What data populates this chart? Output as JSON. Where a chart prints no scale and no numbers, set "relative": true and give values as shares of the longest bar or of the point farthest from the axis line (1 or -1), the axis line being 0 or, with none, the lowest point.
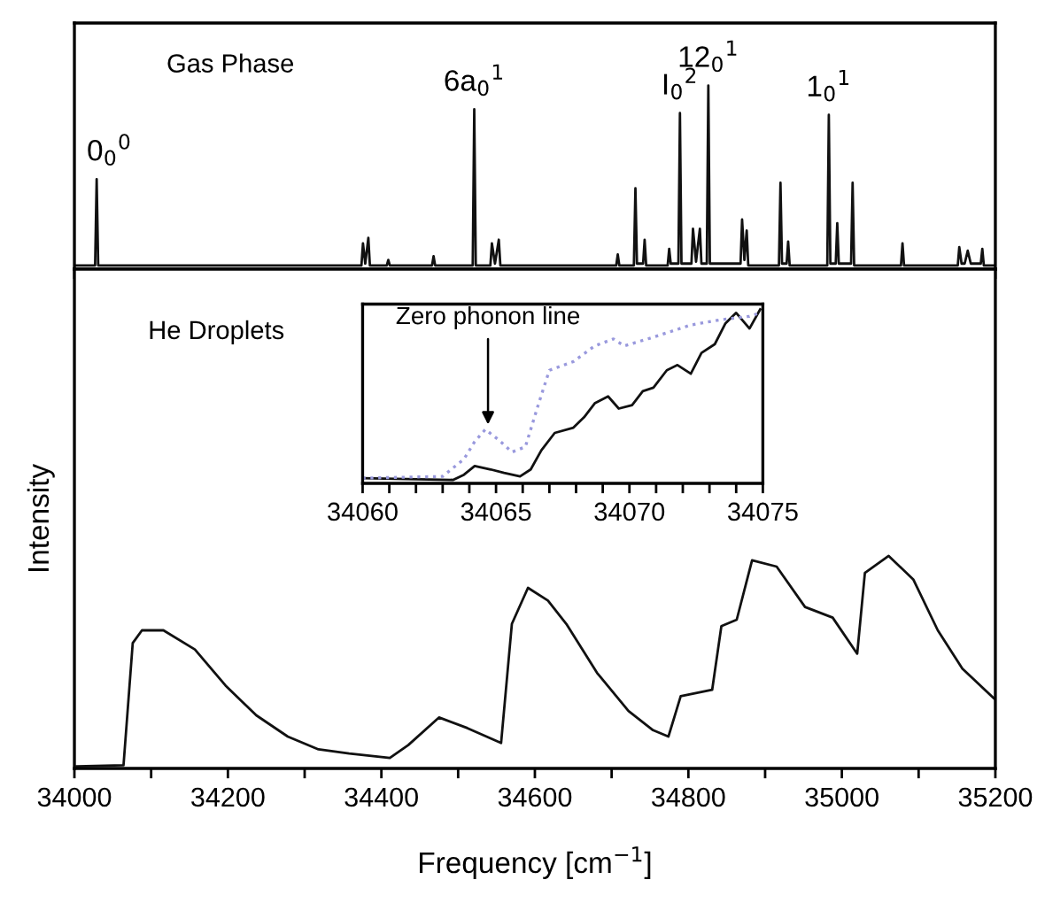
{
  "chart_data": [
    {
      "type": "line",
      "relative": true,
      "xlim": [
        34000,
        35200
      ],
      "xticks": [
        {
          "value": 34000,
          "label": null
        },
        {
          "value": 34100,
          "label": null
        },
        {
          "value": 34200,
          "label": null
        },
        {
          "value": 34300,
          "label": null
        },
        {
          "value": 34400,
          "label": null
        },
        {
          "value": 34500,
          "label": null
        },
        {
          "value": 34600,
          "label": null
        },
        {
          "value": 34700,
          "label": null
        },
        {
          "value": 34800,
          "label": null
        },
        {
          "value": 34900,
          "label": null
        },
        {
          "value": 35000,
          "label": null
        },
        {
          "value": 35100,
          "label": null
        },
        {
          "value": 35200,
          "label": null
        }
      ],
      "tick_labels": false,
      "annotations": [
        "Gas Phase",
        {
          "text": "0$_{0}$$^{0}$",
          "x": 34029,
          "y": 0.49
        },
        {
          "text": "6a$_{0}$$^{1}$",
          "x": 34521,
          "y": 0.87
        },
        {
          "text": "I$_{0}$$^{2}$",
          "x": 34789,
          "y": 0.85
        },
        {
          "text": "12$_{0}$$^{1}$",
          "x": 34826,
          "y": 1.0
        },
        {
          "text": "1$_{0}$$^{1}$",
          "x": 34983,
          "y": 0.84
        }
      ],
      "series": [
        {
          "color": "#111111",
          "line_style": "solid",
          "x": [
            34000,
            34027,
            34029,
            34031,
            34374,
            34376,
            34379,
            34383,
            34385,
            34407,
            34409,
            34411,
            34466,
            34468,
            34470,
            34519,
            34521,
            34523,
            34542,
            34544,
            34548,
            34553,
            34555,
            34706,
            34708,
            34710,
            34729,
            34731,
            34733,
            34741,
            34743,
            34745,
            34773,
            34775,
            34777,
            34787,
            34789,
            34791,
            34804,
            34806,
            34810,
            34815,
            34817,
            34824,
            34826,
            34828,
            34868,
            34870,
            34873,
            34876,
            34878,
            34918,
            34920,
            34922,
            34928,
            34930,
            34932,
            34981,
            34983,
            34985,
            34992,
            34994,
            34996,
            35012,
            35014,
            35016,
            35077,
            35079,
            35081,
            35151,
            35153,
            35156,
            35160,
            35164,
            35168,
            35181,
            35183,
            35185,
            35200
          ],
          "values": [
            0.02,
            0.02,
            0.49,
            0.02,
            0.02,
            0.14,
            0.03,
            0.17,
            0.02,
            0.02,
            0.05,
            0.02,
            0.02,
            0.07,
            0.02,
            0.02,
            0.87,
            0.02,
            0.02,
            0.14,
            0.03,
            0.16,
            0.02,
            0.02,
            0.08,
            0.02,
            0.02,
            0.44,
            0.03,
            0.03,
            0.16,
            0.02,
            0.02,
            0.11,
            0.03,
            0.03,
            0.85,
            0.03,
            0.03,
            0.22,
            0.04,
            0.22,
            0.03,
            0.03,
            1.0,
            0.03,
            0.03,
            0.27,
            0.05,
            0.21,
            0.02,
            0.02,
            0.47,
            0.03,
            0.03,
            0.15,
            0.02,
            0.02,
            0.84,
            0.03,
            0.03,
            0.25,
            0.03,
            0.03,
            0.47,
            0.02,
            0.02,
            0.14,
            0.02,
            0.02,
            0.12,
            0.03,
            0.03,
            0.1,
            0.03,
            0.03,
            0.11,
            0.02,
            0.02
          ]
        }
      ]
    },
    {
      "type": "line",
      "relative": true,
      "xlim": [
        34000,
        35200
      ],
      "xticks": [
        34000,
        {
          "value": 34100,
          "label": null
        },
        34200,
        {
          "value": 34300,
          "label": null
        },
        34400,
        {
          "value": 34500,
          "label": null
        },
        34600,
        {
          "value": 34700,
          "label": null
        },
        34800,
        {
          "value": 34900,
          "label": null
        },
        35000,
        {
          "value": 35100,
          "label": null
        },
        35200
      ],
      "tick_labels": "x",
      "xlabel": "Frequency [cm$^{−1}$]",
      "ylabel": "Intensity",
      "annotations": [
        "He Droplets"
      ],
      "series": [
        {
          "color": "#111111",
          "line_style": "solid",
          "x": [
            34003,
            34064,
            34076,
            34088,
            34116,
            34157,
            34197,
            34237,
            34278,
            34318,
            34358,
            34411,
            34435,
            34475,
            34512,
            34556,
            34570,
            34591,
            34617,
            34641,
            34681,
            34722,
            34754,
            34774,
            34790,
            34831,
            34843,
            34863,
            34883,
            34915,
            34952,
            34988,
            35020,
            35030,
            35061,
            35093,
            35125,
            35157,
            35198
          ],
          "values": [
            0.01,
            0.015,
            0.59,
            0.65,
            0.65,
            0.56,
            0.39,
            0.25,
            0.15,
            0.09,
            0.07,
            0.05,
            0.11,
            0.24,
            0.19,
            0.12,
            0.68,
            0.85,
            0.79,
            0.68,
            0.45,
            0.27,
            0.18,
            0.15,
            0.34,
            0.37,
            0.67,
            0.7,
            0.98,
            0.95,
            0.76,
            0.71,
            0.54,
            0.92,
            1.0,
            0.89,
            0.65,
            0.47,
            0.33
          ]
        }
      ]
    },
    {
      "type": "line",
      "relative": true,
      "xlim": [
        34060,
        34075
      ],
      "xticks": [
        34060,
        {
          "value": 34061,
          "label": null
        },
        {
          "value": 34062,
          "label": null
        },
        {
          "value": 34063,
          "label": null
        },
        {
          "value": 34064,
          "label": null
        },
        34065,
        {
          "value": 34066,
          "label": null
        },
        {
          "value": 34067,
          "label": null
        },
        {
          "value": 34068,
          "label": null
        },
        {
          "value": 34069,
          "label": null
        },
        34070,
        {
          "value": 34071,
          "label": null
        },
        {
          "value": 34072,
          "label": null
        },
        {
          "value": 34073,
          "label": null
        },
        {
          "value": 34074,
          "label": null
        },
        34075
      ],
      "tick_labels": "x",
      "annotations": [
        {
          "text": "Zero phonon line",
          "x": 34064.7,
          "y": 0.31
        }
      ],
      "series": [
        {
          "color": "#111111",
          "line_style": "solid",
          "x": [
            34060,
            34063.4,
            34063.8,
            34064.2,
            34064.8,
            34065.3,
            34065.9,
            34066.3,
            34066.7,
            34067.2,
            34067.9,
            34068.3,
            34068.7,
            34069.2,
            34069.6,
            34070.1,
            34070.5,
            34070.9,
            34071.4,
            34071.8,
            34072.3,
            34072.7,
            34073.2,
            34073.6,
            34074.0,
            34074.5,
            34074.9
          ],
          "values": [
            0.03,
            0.02,
            0.05,
            0.1,
            0.08,
            0.06,
            0.04,
            0.08,
            0.19,
            0.29,
            0.32,
            0.38,
            0.46,
            0.5,
            0.43,
            0.45,
            0.53,
            0.55,
            0.65,
            0.68,
            0.63,
            0.75,
            0.8,
            0.92,
            0.98,
            0.89,
            1.0
          ]
        },
        {
          "color": "#9999dd",
          "line_style": "dotted",
          "x": [
            34060,
            34063.0,
            34063.8,
            34064.2,
            34064.6,
            34065.1,
            34065.6,
            34066.1,
            34066.6,
            34067.0,
            34067.9,
            34068.7,
            34069.4,
            34069.8,
            34070.9,
            34072.3,
            34073.4,
            34074.5,
            34074.9
          ],
          "values": [
            0.03,
            0.04,
            0.14,
            0.24,
            0.31,
            0.25,
            0.18,
            0.21,
            0.46,
            0.65,
            0.7,
            0.79,
            0.83,
            0.79,
            0.84,
            0.91,
            0.94,
            0.96,
            0.98
          ]
        }
      ]
    }
  ]
}
